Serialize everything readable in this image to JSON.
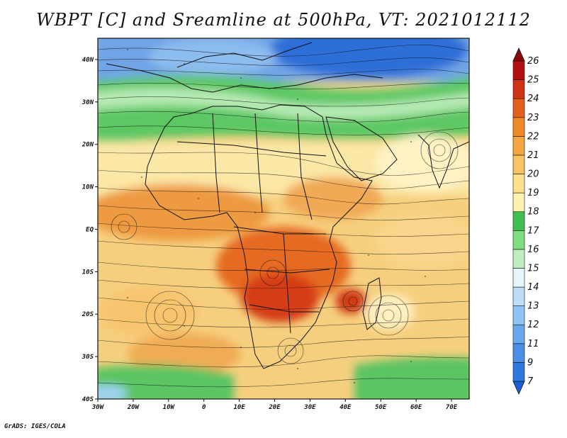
{
  "title": "WBPT [C] and Sreamline at 500hPa, VT: 2021012112",
  "footer": "GrADS: IGES/COLA",
  "map": {
    "lat_labels": [
      "40N",
      "30N",
      "20N",
      "10N",
      "EQ",
      "10S",
      "20S",
      "30S",
      "40S"
    ],
    "lon_labels": [
      "30W",
      "20W",
      "10W",
      "0",
      "10E",
      "20E",
      "30E",
      "40E",
      "50E",
      "60E",
      "70E"
    ],
    "lat_range": [
      -40,
      45
    ],
    "lon_range": [
      -30,
      75
    ]
  },
  "colorbar": {
    "labels": [
      "7",
      "9",
      "11",
      "12",
      "13",
      "14",
      "15",
      "16",
      "17",
      "18",
      "19",
      "20",
      "21",
      "22",
      "23",
      "24",
      "25",
      "26"
    ],
    "colors": [
      "#1a5fd6",
      "#2f78e0",
      "#4a8fe6",
      "#6aa8ec",
      "#93c3f2",
      "#bcdcf7",
      "#e6f6fb",
      "#bfeec0",
      "#7fdc7f",
      "#3fbf4f",
      "#fff2b0",
      "#fde08c",
      "#f8c465",
      "#f3a640",
      "#ee8a25",
      "#e3601a",
      "#cf3415",
      "#b01010",
      "#8a0707"
    ]
  },
  "icons": {
    "colorbar_end_top": "triangle-up",
    "colorbar_end_bottom": "triangle-down"
  }
}
